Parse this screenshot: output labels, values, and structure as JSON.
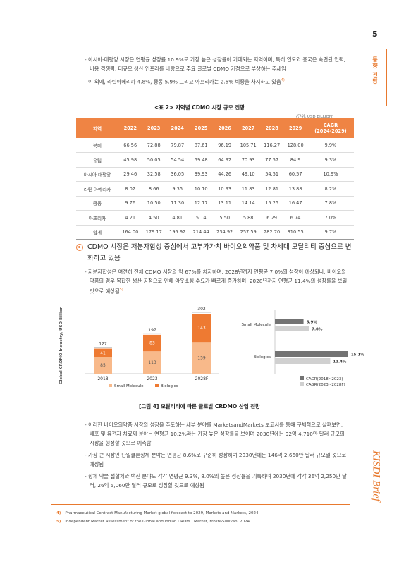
{
  "page_number": "5",
  "side_tab": [
    "동",
    "향",
    " ",
    "전",
    "망"
  ],
  "intro_bullets": [
    {
      "text": "- 아시아-태평양 시장은 연평균 성장률 10.9%로 가장 높은 성장률이 기대되는 지역이며, 특히 인도와 중국은 숙련된 인력, 비용 경쟁력, 대규모 생산 인프라를 바탕으로 주요 글로벌 CDMO 거점으로 부상하는 추세임",
      "sup": ""
    },
    {
      "text": "- 이 외에, 라틴아메리카 4.8%, 중동 5.9% 그리고 아프리카는 2.5% 비중을 차지하고 있음",
      "sup": "4)"
    }
  ],
  "table": {
    "title": "<표 2> 지역별 CDMO 시장 규모 전망",
    "unit": "(단위: USD BILLION)",
    "headers": [
      "지역",
      "2022",
      "2023",
      "2024",
      "2025",
      "2026",
      "2027",
      "2028",
      "2029",
      "CAGR\n(2024-2029)"
    ],
    "rows": [
      [
        "북미",
        "66.56",
        "72.88",
        "79.87",
        "87.61",
        "96.19",
        "105.71",
        "116.27",
        "128.00",
        "9.9%"
      ],
      [
        "유럽",
        "45.98",
        "50.05",
        "54.54",
        "59.48",
        "64.92",
        "70.93",
        "77.57",
        "84.9",
        "9.3%"
      ],
      [
        "아시아 태평양",
        "29.46",
        "32.58",
        "36.05",
        "39.93",
        "44.26",
        "49.10",
        "54.51",
        "60.57",
        "10.9%"
      ],
      [
        "라틴 아메리카",
        "8.02",
        "8.66",
        "9.35",
        "10.10",
        "10.93",
        "11.83",
        "12.81",
        "13.88",
        "8.2%"
      ],
      [
        "중동",
        "9.76",
        "10.50",
        "11.30",
        "12.17",
        "13.11",
        "14.14",
        "15.25",
        "16.47",
        "7.8%"
      ],
      [
        "아프리카",
        "4.21",
        "4.50",
        "4.81",
        "5.14",
        "5.50",
        "5.88",
        "6.29",
        "6.74",
        "7.0%"
      ],
      [
        "합계",
        "164.00",
        "179.17",
        "195.92",
        "214.44",
        "234.92",
        "257.59",
        "282.70",
        "310.55",
        "9.7%"
      ]
    ]
  },
  "section": {
    "heading": "CDMO 시장은 저분자합성 중심에서 고부가가치 바이오의약품 및 차세대 모달리티 중심으로 변화하고 있음",
    "bullet": "- 저분자합성은 여전히 전체 CDMO 시장의 약 67%를 차지하며, 2028년까지 연평균 7.0%의 성장이 예상되나, 바이오의약품의 경우 복잡한 생산 공정으로 인해 아웃소싱 수요가 빠르게 증가하며, 2028년까지 연평균 11.4%의 성장률을 보일 것으로 예상됨",
    "bullet_sup": "5)"
  },
  "chart_data": [
    {
      "type": "bar",
      "stacked": true,
      "categories": [
        "2018",
        "2023",
        "2028F"
      ],
      "series": [
        {
          "name": "Small Molecule",
          "values": [
            85,
            113,
            159
          ],
          "color": "#f8b98a"
        },
        {
          "name": "Biologics",
          "values": [
            41,
            83,
            143
          ],
          "color": "#ee7a32"
        }
      ],
      "totals": [
        127,
        197,
        302
      ],
      "ylabel": "Global CRDMO Industry, USD Billion",
      "ylim": [
        0,
        320
      ]
    },
    {
      "type": "bar",
      "orientation": "horizontal",
      "categories": [
        "Small Molecule",
        "Biologics"
      ],
      "series": [
        {
          "name": "CAGR(2018~2023)",
          "values": [
            5.9,
            15.1
          ],
          "color": "#737373"
        },
        {
          "name": "CAGR(2023~2028F)",
          "values": [
            7.0,
            11.4
          ],
          "color": "#d0d0d0"
        }
      ],
      "value_labels": [
        [
          "5.9%",
          "15.1%"
        ],
        [
          "7.0%",
          "11.4%"
        ]
      ],
      "xlim": [
        0,
        16
      ]
    }
  ],
  "figure_title": "[그림 4] 모달리티에 따른 글로벌 CRDMO 산업 전망",
  "lower_bullets": [
    "- 이러한 바이오의약품 시장의 성장을 주도하는 세부 분야를 MarketsandMarkets 보고서를 통해 구체적으로 살펴보면, 세포 및 유전자 치료제 분야는 연평균 10.2%라는 가장 높은 성장률을 보이며 2030년에는 92억 4,710만 달러 규모의 시장을 형성할 것으로 예측함",
    "- 가장 큰 시장인 단일클론항체 분야는 연평균 8.6%로 꾸준히 성장하여 2030년에는 146억 2,660만 달러 규모일 것으로 예상됨",
    "- 항체 약물 접합체와 백신 분야도 각각 연평균 9.3%, 8.0%의 높은 성장률을 기록하며 2030년에 각각 36억 2,250만 달러, 26억 5,060만 달러 규모로 성장할 것으로 예상됨"
  ],
  "footnotes": [
    {
      "num": "4)",
      "text": "Pharmaceutical Contract Manufacturing Market global forecast to 2029, Markets and Markets, 2024"
    },
    {
      "num": "5)",
      "text": "Independent Market Assessment of the Global and Indian CRDMO Market, Frost&Sullivan, 2024"
    }
  ],
  "logo_text": "KISDI Brief",
  "colors": {
    "accent": "#ef8444"
  }
}
